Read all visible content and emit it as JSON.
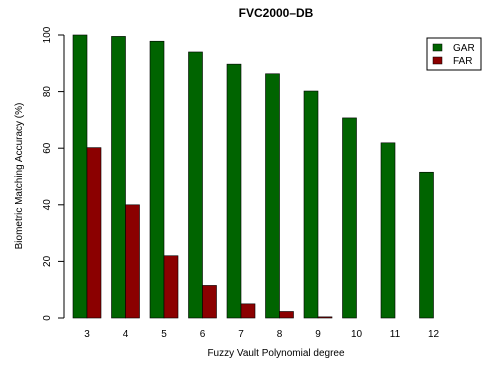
{
  "chart_data": {
    "type": "bar",
    "title": "FVC2000–DB",
    "xlabel": "Fuzzy Vault Polynomial degree",
    "ylabel": "Biometric Matching Accuracy (%)",
    "ylim": [
      0,
      100
    ],
    "yticks": [
      "0",
      "20",
      "40",
      "60",
      "80",
      "100"
    ],
    "categories": [
      "3",
      "4",
      "5",
      "6",
      "7",
      "8",
      "9",
      "10",
      "11",
      "12"
    ],
    "series": [
      {
        "name": "GAR",
        "color": "#006400",
        "values": [
          100,
          99.5,
          97.8,
          94,
          89.7,
          86.3,
          80.2,
          70.7,
          61.9,
          51.5
        ]
      },
      {
        "name": "FAR",
        "color": "#8B0000",
        "values": [
          60.2,
          40,
          22,
          11.5,
          5,
          2.3,
          0.4,
          0,
          0,
          0
        ]
      }
    ],
    "legend_position": "top-right",
    "grid": false
  }
}
